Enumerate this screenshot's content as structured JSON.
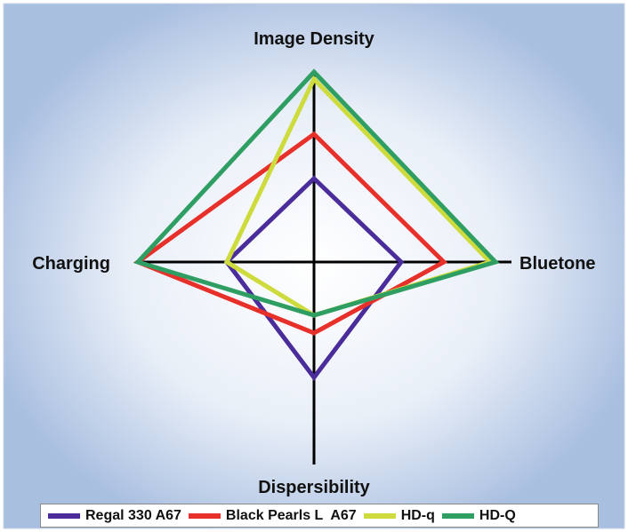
{
  "chart_data": {
    "type": "radar",
    "axes": [
      "Image Density",
      "Bluetone",
      "Dispersibility",
      "Charging"
    ],
    "axis_max": 1.0,
    "series": [
      {
        "name": "Regal 330 A67",
        "color": "#4a2d9a",
        "values": [
          0.47,
          0.49,
          0.65,
          0.49
        ]
      },
      {
        "name": "Black Pearls L  A67",
        "color": "#e8302a",
        "values": [
          0.72,
          0.73,
          0.4,
          0.99
        ]
      },
      {
        "name": "HD-q",
        "color": "#cddc3c",
        "values": [
          1.03,
          0.99,
          0.3,
          0.49
        ]
      },
      {
        "name": "HD-Q",
        "color": "#2f9e63",
        "values": [
          1.07,
          1.02,
          0.3,
          0.99
        ]
      }
    ],
    "background": {
      "outer": "#a9bfe0",
      "inner": "#ffffff"
    },
    "axis_color": "#000000"
  }
}
